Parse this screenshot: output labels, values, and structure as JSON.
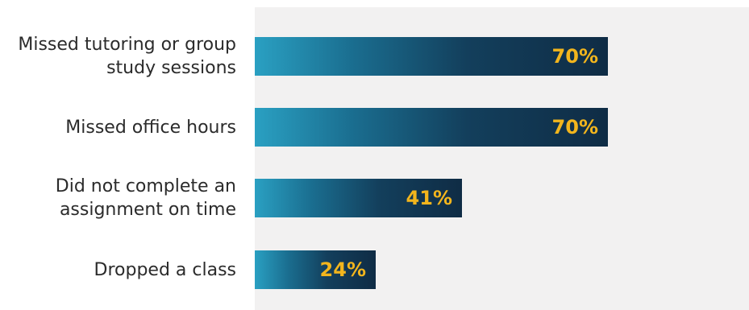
{
  "chart_data": {
    "type": "bar",
    "orientation": "horizontal",
    "categories": [
      "Missed tutoring or group study sessions",
      "Missed office hours",
      "Did not complete an assignment on time",
      "Dropped a class"
    ],
    "values": [
      70,
      70,
      41,
      24
    ],
    "value_labels": [
      "70%",
      "70%",
      "41%",
      "24%"
    ],
    "xlim": [
      0,
      100
    ],
    "title": "",
    "xlabel": "",
    "ylabel": "",
    "grid": false,
    "legend": "none",
    "colors": {
      "bar_start": "#2aa0c2",
      "bar_end": "#0f2c45",
      "value_text": "#f2b51d",
      "plot_background": "#f2f1f1",
      "label_text": "#2b2b2b"
    }
  }
}
